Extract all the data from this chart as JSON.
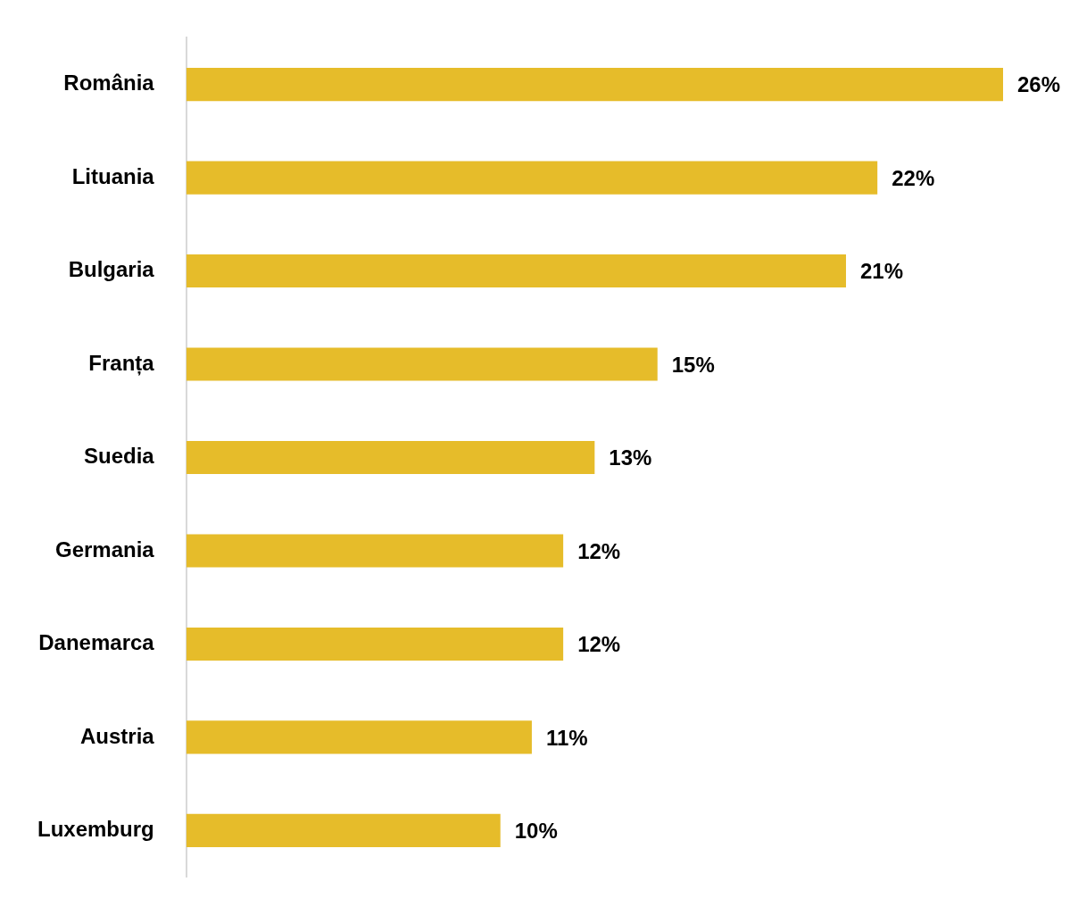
{
  "chart_data": {
    "type": "bar",
    "orientation": "horizontal",
    "categories": [
      "România",
      "Lituania",
      "Bulgaria",
      "Franța",
      "Suedia",
      "Germania",
      "Danemarca",
      "Austria",
      "Luxemburg"
    ],
    "values": [
      26,
      22,
      21,
      15,
      13,
      12,
      12,
      11,
      10
    ],
    "value_labels": [
      "26%",
      "22%",
      "21%",
      "15%",
      "13%",
      "12%",
      "12%",
      "11%",
      "10%"
    ],
    "color": "#e6bc2a",
    "grid": false,
    "legend": false
  }
}
